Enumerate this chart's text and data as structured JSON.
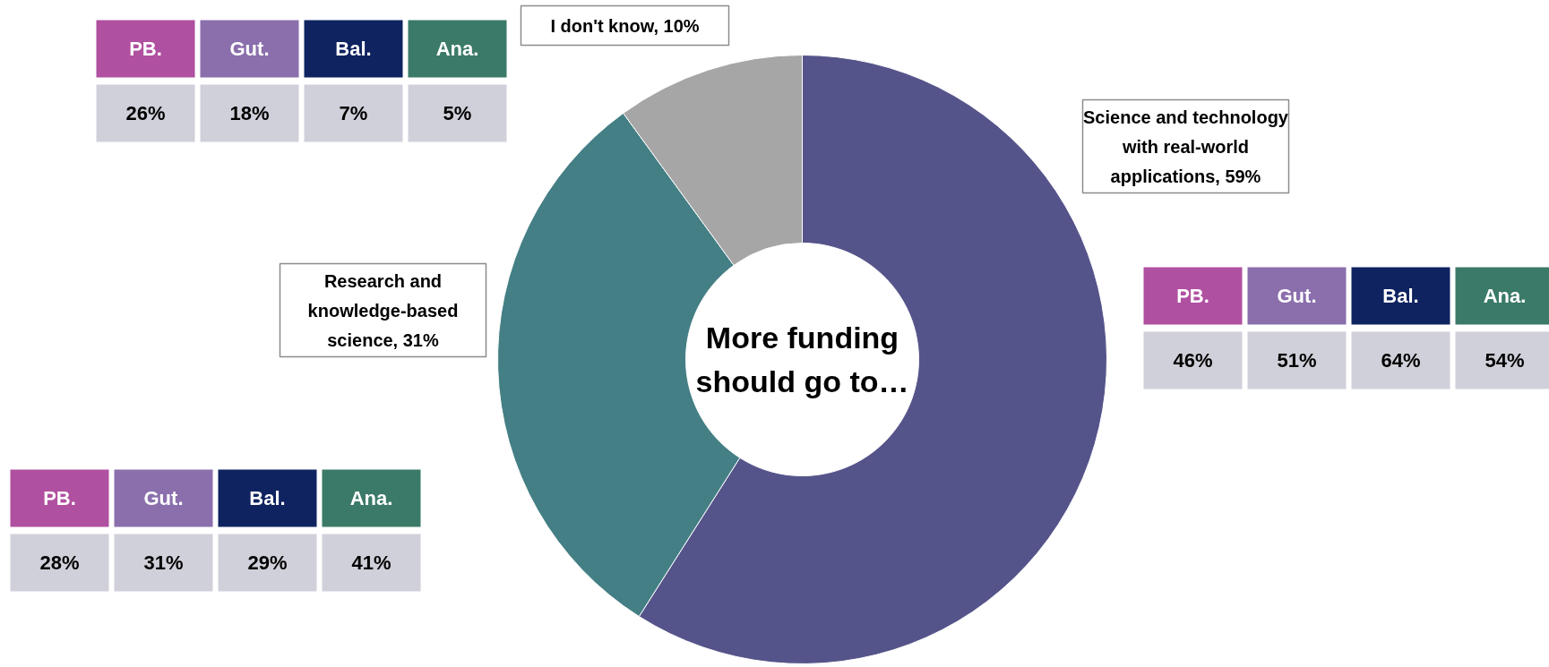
{
  "chart_data": [
    {
      "type": "donut",
      "title": "More funding should go to…",
      "categories": [
        "Science and technology with real-world applications, 59%",
        "Research and knowledge-based science, 31%",
        "I don't know, 10%"
      ],
      "values": [
        59,
        31,
        10
      ],
      "colors": [
        "#55548a",
        "#447f85",
        "#a6a6a6"
      ]
    },
    {
      "type": "other",
      "categories": [
        "PB.",
        "Gut.",
        "Bal.",
        "Ana."
      ],
      "colors": [
        "#b050a0",
        "#8a6fac",
        "#0f2360",
        "#3b7a68"
      ],
      "value_labels": [
        "46%",
        "51%",
        "64%",
        "54%"
      ]
    },
    {
      "type": "other",
      "categories": [
        "PB.",
        "Gut.",
        "Bal.",
        "Ana."
      ],
      "colors": [
        "#b050a0",
        "#8a6fac",
        "#0f2360",
        "#3b7a68"
      ],
      "value_labels": [
        "28%",
        "31%",
        "29%",
        "41%"
      ]
    },
    {
      "type": "other",
      "categories": [
        "PB.",
        "Gut.",
        "Bal.",
        "Ana."
      ],
      "colors": [
        "#b050a0",
        "#8a6fac",
        "#0f2360",
        "#3b7a68"
      ],
      "value_labels": [
        "26%",
        "18%",
        "7%",
        "5%"
      ]
    }
  ]
}
